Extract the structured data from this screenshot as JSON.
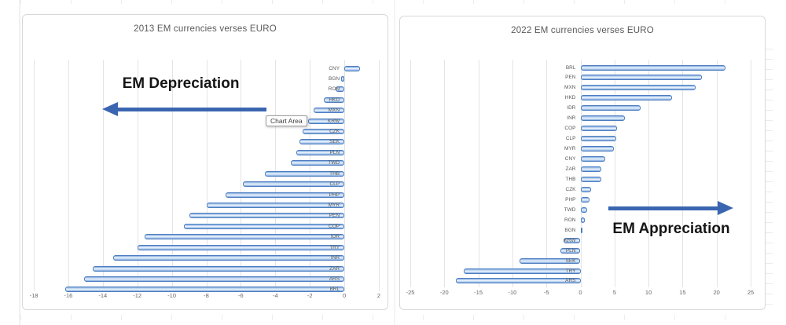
{
  "colors": {
    "bar_fill_light": "#BED5F0",
    "bar_border": "#4C7CC0",
    "arrow_blue": "#3A65B0",
    "title_gray": "#595959",
    "gridline_gray": "#E4E4E4"
  },
  "tooltip": {
    "text": "Chart Area"
  },
  "chart_data": [
    {
      "type": "bar",
      "orientation": "horizontal",
      "title": "2013 EM currencies verses EURO",
      "xlabel": "",
      "ylabel": "",
      "xlim": [
        -18,
        2
      ],
      "grid": true,
      "legend": "none",
      "annotation": "EM Depreciation",
      "arrow_direction": "left",
      "x_tick_values": [
        -18,
        -16,
        -14,
        -12,
        -10,
        -8,
        -6,
        -4,
        -2,
        0,
        2
      ],
      "x_tick_labels": [
        "-18",
        "-16",
        "-14",
        "-12",
        "-10",
        "-8",
        "-6",
        "-4",
        "-2",
        "0",
        "2"
      ],
      "categories": [
        "CNY",
        "BGN",
        "RON",
        "HKD",
        "MXN",
        "KRW",
        "CZK",
        "SEK",
        "PLN",
        "TWD",
        "THB",
        "CLP",
        "PHP",
        "MYR",
        "PEN",
        "COP",
        "IDR",
        "TRY",
        "INR",
        "ZAR",
        "ARS",
        "BRL"
      ],
      "values": [
        0.9,
        -0.2,
        -0.5,
        -1.2,
        -1.8,
        -2.1,
        -2.4,
        -2.6,
        -2.8,
        -3.1,
        -4.6,
        -5.9,
        -6.9,
        -8.0,
        -9.0,
        -9.3,
        -11.6,
        -12.0,
        -13.4,
        -14.6,
        -15.1,
        -16.2
      ]
    },
    {
      "type": "bar",
      "orientation": "horizontal",
      "title": "2022 EM currencies verses EURO",
      "xlabel": "",
      "ylabel": "",
      "xlim": [
        -25,
        25
      ],
      "grid": true,
      "legend": "none",
      "annotation": "EM Appreciation",
      "arrow_direction": "right",
      "x_tick_values": [
        -25,
        -20,
        -15,
        -10,
        -5,
        0,
        5,
        10,
        15,
        20,
        25
      ],
      "x_tick_labels": [
        "-25",
        "-20",
        "-15",
        "-10",
        "-5",
        "0",
        "5",
        "10",
        "15",
        "20",
        "25"
      ],
      "categories": [
        "BRL",
        "PEN",
        "MXN",
        "HKD",
        "IDR",
        "INR",
        "COP",
        "CLP",
        "MYR",
        "CNY",
        "ZAR",
        "THB",
        "CZK",
        "PHP",
        "TWD",
        "RON",
        "BGN",
        "KRW",
        "PLN",
        "SEK",
        "TRY",
        "ARS"
      ],
      "values": [
        21.3,
        17.8,
        16.9,
        13.5,
        8.8,
        6.5,
        5.4,
        5.3,
        4.9,
        3.6,
        3.0,
        3.0,
        1.5,
        1.3,
        1.0,
        0.6,
        0.2,
        -2.5,
        -2.9,
        -8.9,
        -17.2,
        -18.3
      ]
    }
  ]
}
